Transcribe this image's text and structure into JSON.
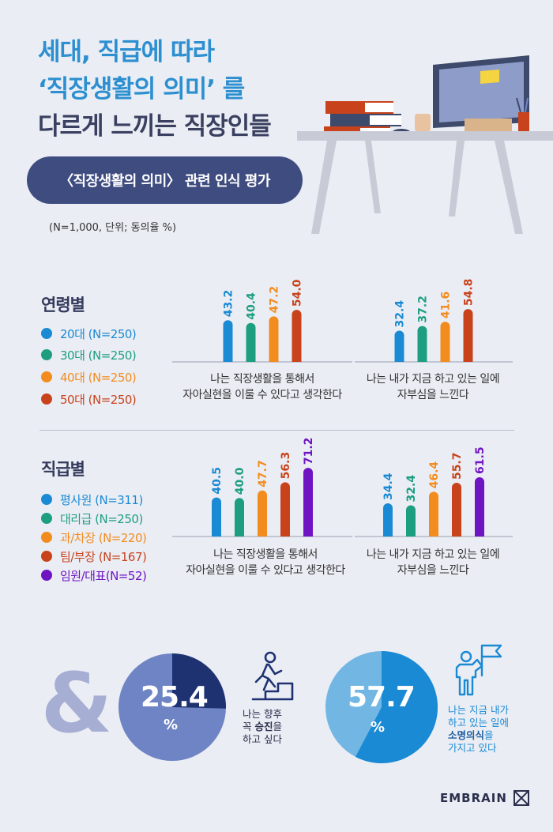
{
  "title": {
    "line1": "세대, 직급에 따라",
    "line2": "‘직장생활의 의미’ 를",
    "line3": "다르게 느끼는 직장인들"
  },
  "subtitle": "〈직장생활의 의미〉 관련 인식 평가",
  "note": "(N=1,000, 단위; 동의율 %)",
  "colors": {
    "title": "#2c8fd0",
    "title_dark": "#3a4060",
    "pill": "#3f4c80",
    "blue": "#1a8ad4",
    "green": "#1d9e80",
    "orange": "#f28c1e",
    "brick": "#c8431c",
    "purple": "#6e14c2"
  },
  "age_section": {
    "title": "연령별",
    "legend": [
      {
        "label": "20대 (N=250)",
        "color": "#1a8ad4"
      },
      {
        "label": "30대 (N=250)",
        "color": "#1d9e80"
      },
      {
        "label": "40대 (N=250)",
        "color": "#f28c1e"
      },
      {
        "label": "50대 (N=250)",
        "color": "#c8431c"
      }
    ]
  },
  "rank_section": {
    "title": "직급별",
    "legend": [
      {
        "label": "평사원 (N=311)",
        "color": "#1a8ad4"
      },
      {
        "label": "대리급 (N=250)",
        "color": "#1d9e80"
      },
      {
        "label": "과/차장 (N=220)",
        "color": "#f28c1e"
      },
      {
        "label": "팀/부장 (N=167)",
        "color": "#c8431c"
      },
      {
        "label": "임원/대표(N=52)",
        "color": "#6e14c2"
      }
    ]
  },
  "chart_data": [
    {
      "type": "bar",
      "group": "연령별",
      "caption": "나는 직장생활을 통해서\n자아실현을 이룰 수 있다고 생각한다",
      "categories": [
        "20대 (N=250)",
        "30대 (N=250)",
        "40대 (N=250)",
        "50대 (N=250)"
      ],
      "values": [
        43.2,
        40.4,
        47.2,
        54.0
      ],
      "labels": [
        "43.2",
        "40.4",
        "47.2",
        "54.0"
      ],
      "colors": [
        "#1a8ad4",
        "#1d9e80",
        "#f28c1e",
        "#c8431c"
      ],
      "ylim": [
        0,
        100
      ]
    },
    {
      "type": "bar",
      "group": "연령별",
      "caption": "나는 내가 지금 하고 있는 일에\n자부심을 느낀다",
      "categories": [
        "20대 (N=250)",
        "30대 (N=250)",
        "40대 (N=250)",
        "50대 (N=250)"
      ],
      "values": [
        32.4,
        37.2,
        41.6,
        54.8
      ],
      "labels": [
        "32.4",
        "37.2",
        "41.6",
        "54.8"
      ],
      "colors": [
        "#1a8ad4",
        "#1d9e80",
        "#f28c1e",
        "#c8431c"
      ],
      "ylim": [
        0,
        100
      ]
    },
    {
      "type": "bar",
      "group": "직급별",
      "caption": "나는 직장생활을 통해서\n자아실현을 이룰 수 있다고 생각한다",
      "categories": [
        "평사원 (N=311)",
        "대리급 (N=250)",
        "과/차장 (N=220)",
        "팀/부장 (N=167)",
        "임원/대표(N=52)"
      ],
      "values": [
        40.5,
        40.0,
        47.7,
        56.3,
        71.2
      ],
      "labels": [
        "40.5",
        "40.0",
        "47.7",
        "56.3",
        "71.2"
      ],
      "colors": [
        "#1a8ad4",
        "#1d9e80",
        "#f28c1e",
        "#c8431c",
        "#6e14c2"
      ],
      "ylim": [
        0,
        100
      ]
    },
    {
      "type": "bar",
      "group": "직급별",
      "caption": "나는 내가 지금 하고 있는 일에\n자부심을 느낀다",
      "categories": [
        "평사원 (N=311)",
        "대리급 (N=250)",
        "과/차장 (N=220)",
        "팀/부장 (N=167)",
        "임원/대표(N=52)"
      ],
      "values": [
        34.4,
        32.4,
        46.4,
        55.7,
        61.5
      ],
      "labels": [
        "34.4",
        "32.4",
        "46.4",
        "55.7",
        "61.5"
      ],
      "colors": [
        "#1a8ad4",
        "#1d9e80",
        "#f28c1e",
        "#c8431c",
        "#6e14c2"
      ],
      "ylim": [
        0,
        100
      ]
    },
    {
      "type": "pie",
      "value": 25.4,
      "value_label": "25.4",
      "unit": "%",
      "caption": "나는 향후\n꼭 승진을\n하고 싶다",
      "colors": [
        "#1e3272",
        "#6f84c4"
      ]
    },
    {
      "type": "pie",
      "value": 57.7,
      "value_label": "57.7",
      "unit": "%",
      "caption": "나는 지금 내가\n하고 있는 일에\n소명의식을\n가지고 있다",
      "colors": [
        "#1a8ad4",
        "#72b7e4"
      ]
    }
  ],
  "pie_captions": {
    "promo_pre": "나는 향후\n꼭 ",
    "promo_bold": "승진",
    "promo_post": "을\n하고 싶다",
    "calling_pre": "나는 지금 내가\n하고 있는 일에\n",
    "calling_bold": "소명의식",
    "calling_post": "을\n가지고 있다"
  },
  "ampersand": "&",
  "brand": "EMBRAIN"
}
